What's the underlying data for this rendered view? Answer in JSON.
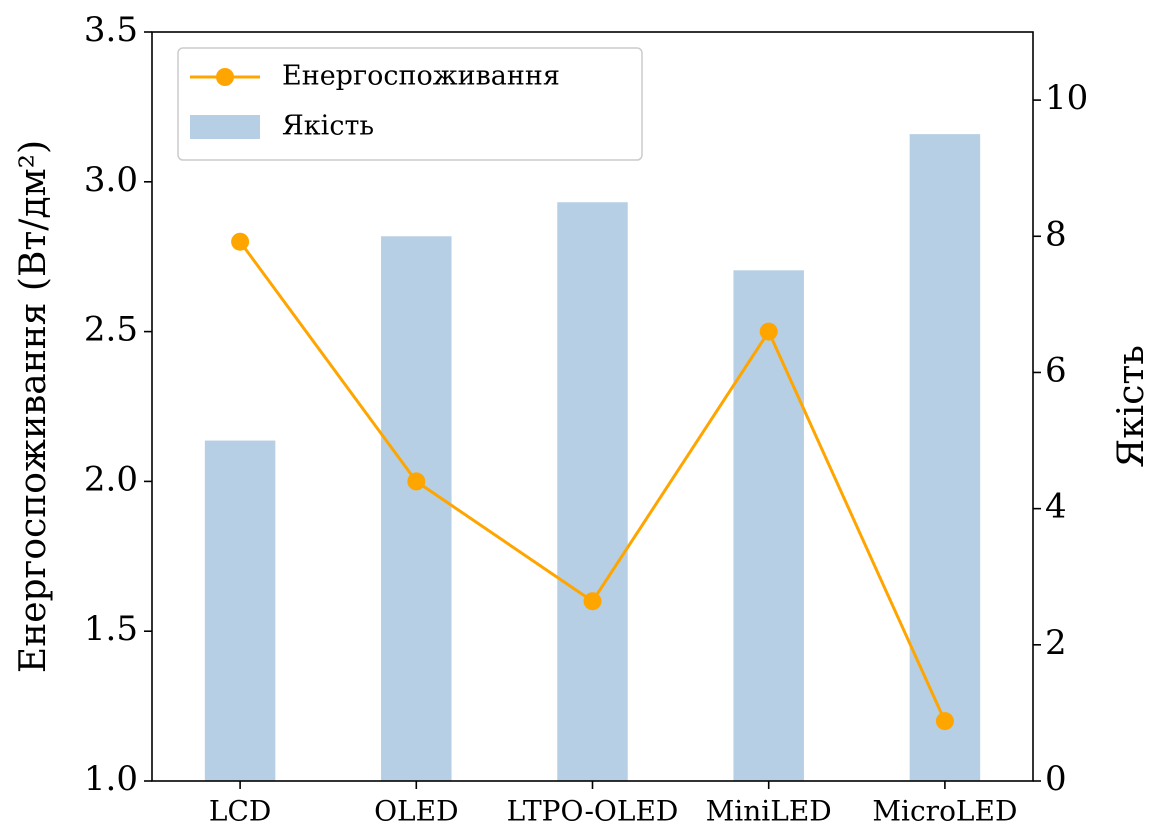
{
  "chart_data": {
    "type": "combo",
    "categories": [
      "LCD",
      "OLED",
      "LTPO-OLED",
      "MiniLED",
      "MicroLED"
    ],
    "ylabel": "Енергоспоживання (Вт/дм²)",
    "y2label": "Якість",
    "ylim": [
      1.0,
      3.5
    ],
    "yticks": [
      {
        "value": 1.0,
        "label": "1.0"
      },
      1.5,
      {
        "value": 2.0,
        "label": "2.0"
      },
      2.5,
      {
        "value": 3.0,
        "label": "3.0"
      },
      3.5
    ],
    "y2lim": [
      0,
      11
    ],
    "y2ticks": [
      0,
      2,
      4,
      6,
      8,
      10
    ],
    "legend": "upper left",
    "series": [
      {
        "name": "Енергоспоживання",
        "type": "line",
        "color": "#FFA500",
        "axis": "y",
        "values": [
          2.8,
          2.0,
          1.6,
          2.5,
          1.2
        ]
      },
      {
        "name": "Якість",
        "type": "bar",
        "color": "#b6cfe4",
        "axis": "y2",
        "values": [
          5.0,
          8.0,
          8.5,
          7.5,
          9.5
        ]
      }
    ]
  }
}
